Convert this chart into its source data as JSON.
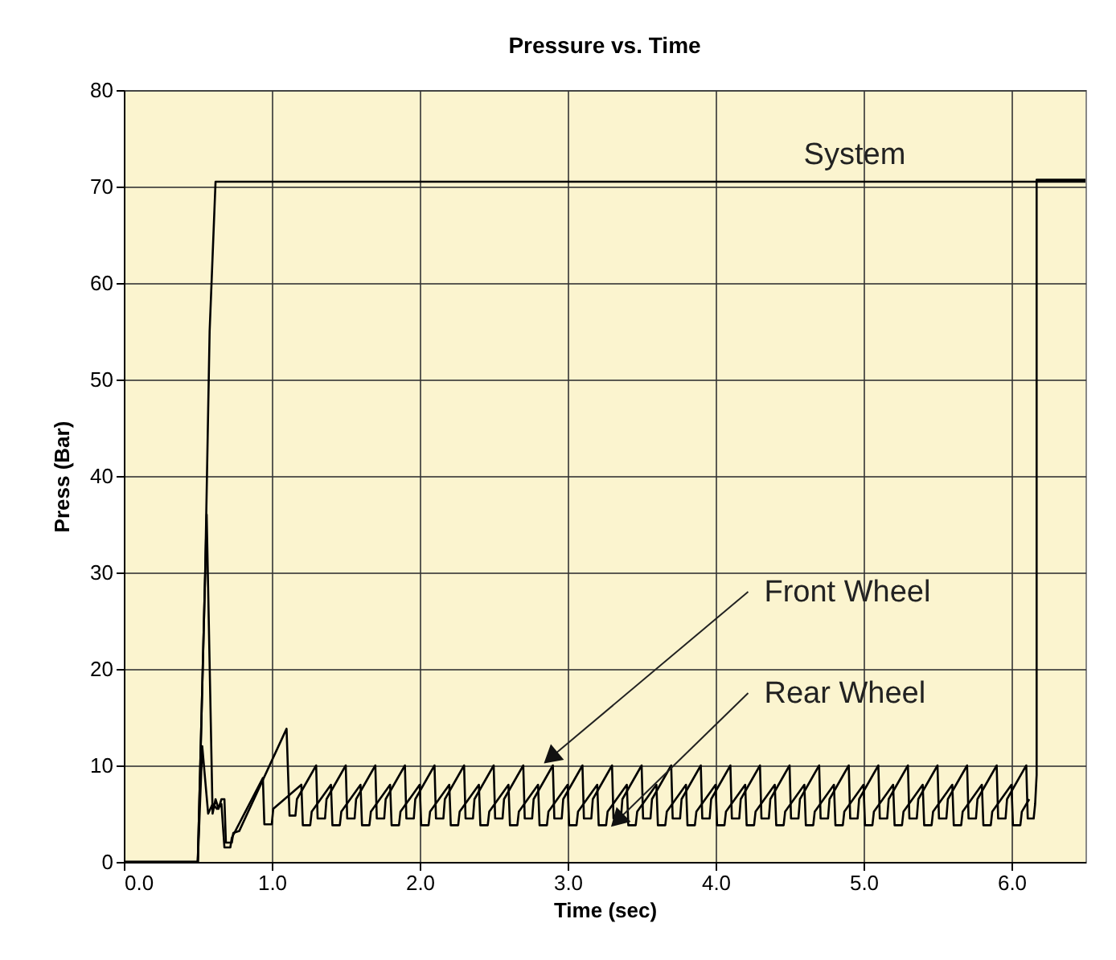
{
  "chart_data": {
    "type": "line",
    "title": "Pressure vs. Time",
    "xlabel": "Time (sec)",
    "ylabel": "Press (Bar)",
    "xlim": [
      0,
      6.5
    ],
    "ylim": [
      0,
      80
    ],
    "xticks": [
      {
        "value": 0,
        "label": "0.0"
      },
      {
        "value": 1,
        "label": "1.0"
      },
      {
        "value": 2,
        "label": "2.0"
      },
      {
        "value": 3,
        "label": "3.0"
      },
      {
        "value": 4,
        "label": "4.0"
      },
      {
        "value": 5,
        "label": "5.0"
      },
      {
        "value": 6,
        "label": "6.0"
      }
    ],
    "yticks": [
      0,
      10,
      20,
      30,
      40,
      50,
      60,
      70,
      80
    ],
    "grid": true,
    "legend": false,
    "marker": "none",
    "line_style": "solid",
    "series": [
      {
        "color": "#000000",
        "x": [
          0,
          0.5,
          0.55,
          0.58,
          0.62,
          6.5
        ],
        "values": [
          0,
          0,
          30,
          55,
          70.5,
          70.5
        ]
      },
      {
        "color": "#000000",
        "x": [
          0,
          0.5,
          0.56,
          0.6,
          0.62,
          0.64,
          0.66,
          0.68,
          0.69,
          0.73,
          0.74,
          0.78,
          1.1,
          1.12,
          1.16,
          1.17,
          1.3,
          1.31,
          1.36,
          1.37,
          1.5,
          1.51,
          1.56,
          1.57,
          1.7,
          1.71,
          1.76,
          1.77,
          1.9,
          1.91,
          1.96,
          1.97,
          2.1,
          2.11,
          2.16,
          2.17,
          2.3,
          2.31,
          2.36,
          2.37,
          2.5,
          2.51,
          2.56,
          2.57,
          2.7,
          2.71,
          2.76,
          2.77,
          2.9,
          2.91,
          2.96,
          2.97,
          3.1,
          3.11,
          3.16,
          3.17,
          3.3,
          3.31,
          3.36,
          3.37,
          3.5,
          3.51,
          3.56,
          3.57,
          3.7,
          3.71,
          3.76,
          3.77,
          3.9,
          3.91,
          3.96,
          3.97,
          4.1,
          4.11,
          4.16,
          4.17,
          4.3,
          4.31,
          4.36,
          4.37,
          4.5,
          4.51,
          4.56,
          4.57,
          4.7,
          4.71,
          4.76,
          4.77,
          4.9,
          4.91,
          4.96,
          4.97,
          5.1,
          5.11,
          5.16,
          5.17,
          5.3,
          5.31,
          5.36,
          5.37,
          5.5,
          5.51,
          5.56,
          5.57,
          5.7,
          5.71,
          5.76,
          5.77,
          5.9,
          5.91,
          5.96,
          5.97,
          6.1,
          6.11,
          6.15,
          6.16,
          6.17,
          6.17,
          6.5
        ],
        "values": [
          0,
          0,
          36,
          5,
          6.5,
          5.5,
          6.5,
          6.5,
          2,
          2,
          3,
          3.2,
          13.8,
          4.8,
          4.8,
          6.5,
          10,
          4.5,
          4.5,
          6.5,
          10,
          4.5,
          4.5,
          6.5,
          10,
          4.5,
          4.5,
          6.5,
          10,
          4.5,
          4.5,
          6.5,
          10,
          4.5,
          4.5,
          6.5,
          10,
          4.5,
          4.5,
          6.5,
          10,
          4.5,
          4.5,
          6.5,
          10,
          4.5,
          4.5,
          6.5,
          10,
          4.5,
          4.5,
          6.5,
          10,
          4.5,
          4.5,
          6.5,
          10,
          4.5,
          4.5,
          6.5,
          10,
          4.5,
          4.5,
          6.5,
          10,
          4.5,
          4.5,
          6.5,
          10,
          4.5,
          4.5,
          6.5,
          10,
          4.5,
          4.5,
          6.5,
          10,
          4.5,
          4.5,
          6.5,
          10,
          4.5,
          4.5,
          6.5,
          10,
          4.5,
          4.5,
          6.5,
          10,
          4.5,
          4.5,
          6.5,
          10,
          4.5,
          4.5,
          6.5,
          10,
          4.5,
          4.5,
          6.5,
          10,
          4.5,
          4.5,
          6.5,
          10,
          4.5,
          4.5,
          6.5,
          10,
          4.5,
          4.5,
          6.5,
          10,
          4.5,
          4.5,
          6,
          9,
          70.7,
          70.7
        ]
      },
      {
        "color": "#000000",
        "x": [
          0,
          0.5,
          0.53,
          0.57,
          0.6,
          0.63,
          0.66,
          0.68,
          0.72,
          0.73,
          0.94,
          0.95,
          1.0,
          1.01,
          1.2,
          1.21,
          1.26,
          1.27,
          1.4,
          1.41,
          1.46,
          1.47,
          1.6,
          1.61,
          1.66,
          1.67,
          1.8,
          1.81,
          1.86,
          1.87,
          2.0,
          2.01,
          2.06,
          2.07,
          2.2,
          2.21,
          2.26,
          2.27,
          2.4,
          2.41,
          2.46,
          2.47,
          2.6,
          2.61,
          2.66,
          2.67,
          2.8,
          2.81,
          2.86,
          2.87,
          3.0,
          3.01,
          3.06,
          3.07,
          3.2,
          3.21,
          3.26,
          3.27,
          3.4,
          3.41,
          3.46,
          3.47,
          3.6,
          3.61,
          3.66,
          3.67,
          3.8,
          3.81,
          3.86,
          3.87,
          4.0,
          4.01,
          4.06,
          4.07,
          4.2,
          4.21,
          4.26,
          4.27,
          4.4,
          4.41,
          4.46,
          4.47,
          4.6,
          4.61,
          4.66,
          4.67,
          4.8,
          4.81,
          4.86,
          4.87,
          5.0,
          5.01,
          5.06,
          5.07,
          5.2,
          5.21,
          5.26,
          5.27,
          5.4,
          5.41,
          5.46,
          5.47,
          5.6,
          5.61,
          5.66,
          5.67,
          5.8,
          5.81,
          5.86,
          5.87,
          6.0,
          6.01,
          6.06,
          6.07,
          6.12
        ],
        "values": [
          0,
          0,
          12,
          5,
          6,
          5.5,
          6,
          1.5,
          1.5,
          2.5,
          8.7,
          3.9,
          3.9,
          5.5,
          8,
          3.8,
          3.8,
          5.2,
          8,
          3.8,
          3.8,
          5.2,
          8,
          3.8,
          3.8,
          5.2,
          8,
          3.8,
          3.8,
          5.2,
          8,
          3.8,
          3.8,
          5.2,
          8,
          3.8,
          3.8,
          5.2,
          8,
          3.8,
          3.8,
          5.2,
          8,
          3.8,
          3.8,
          5.2,
          8,
          3.8,
          3.8,
          5.2,
          8,
          3.8,
          3.8,
          5.2,
          8,
          3.8,
          3.8,
          5.2,
          8,
          3.8,
          3.8,
          5.2,
          8,
          3.8,
          3.8,
          5.2,
          8,
          3.8,
          3.8,
          5.2,
          8,
          3.8,
          3.8,
          5.2,
          8,
          3.8,
          3.8,
          5.2,
          8,
          3.8,
          3.8,
          5.2,
          8,
          3.8,
          3.8,
          5.2,
          8,
          3.8,
          3.8,
          5.2,
          8,
          3.8,
          3.8,
          5.2,
          8,
          3.8,
          3.8,
          5.2,
          8,
          3.8,
          3.8,
          5.2,
          8,
          3.8,
          3.8,
          5.2,
          8,
          3.8,
          3.8,
          5.2,
          8,
          3.8,
          3.8,
          5.2,
          6.5
        ]
      }
    ],
    "annotations": [
      "System",
      {
        "text": "Front Wheel",
        "x": 2.9,
        "y": 11
      },
      {
        "text": "Rear Wheel",
        "x": 3.35,
        "y": 4.5
      }
    ]
  }
}
